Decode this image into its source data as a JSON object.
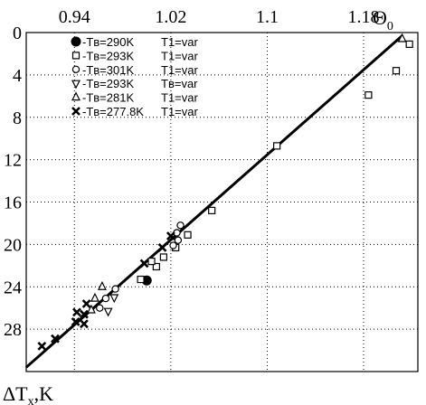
{
  "chart_data": {
    "type": "scatter",
    "title": "",
    "x_axis": {
      "label": "Θ",
      "label_sub": "0",
      "position": "top",
      "ticks": [
        "0.94",
        "1.02",
        "1.1",
        "1.18"
      ],
      "tick_values": [
        0.94,
        1.02,
        1.1,
        1.18
      ],
      "range": [
        0.9,
        1.225
      ]
    },
    "y_axis": {
      "label": "ΔT",
      "label_sub": "x",
      "label_unit": ",K",
      "inverted": true,
      "ticks": [
        "0",
        "4",
        "8",
        "12",
        "16",
        "20",
        "24",
        "28"
      ],
      "tick_values": [
        0,
        4,
        8,
        12,
        16,
        20,
        24,
        28
      ],
      "range": [
        0,
        32
      ]
    },
    "grid": true,
    "legend_position": "top-left",
    "fit_line": {
      "from": [
        0.9,
        31.6
      ],
      "to": [
        1.212,
        0.3
      ]
    },
    "series": [
      {
        "name": "-Tв=290K",
        "suffix": "T1=var",
        "marker": "filled-circle",
        "points": [
          [
            1.0,
            23.4
          ]
        ]
      },
      {
        "name": "-Tв=293K",
        "suffix": "T1=var",
        "marker": "square",
        "points": [
          [
            1.218,
            1.1
          ],
          [
            1.207,
            3.6
          ],
          [
            1.184,
            5.9
          ],
          [
            1.108,
            10.7
          ],
          [
            1.054,
            16.8
          ],
          [
            1.034,
            19.1
          ],
          [
            1.024,
            20.3
          ],
          [
            1.014,
            21.2
          ],
          [
            1.008,
            22.1
          ],
          [
            1.004,
            21.6
          ],
          [
            0.995,
            23.3
          ]
        ]
      },
      {
        "name": "-Tв=301K",
        "suffix": "T1=var",
        "marker": "circle",
        "points": [
          [
            1.028,
            18.2
          ],
          [
            1.026,
            19.6
          ],
          [
            1.022,
            20.1
          ],
          [
            1.025,
            18.9
          ],
          [
            0.974,
            24.2
          ],
          [
            0.966,
            25.1
          ],
          [
            0.961,
            26.0
          ]
        ]
      },
      {
        "name": "-Tв=293K",
        "suffix": "Tв=var",
        "marker": "triangle-down",
        "points": [
          [
            0.973,
            25.0
          ],
          [
            0.968,
            26.3
          ]
        ]
      },
      {
        "name": "-Tв=281K",
        "suffix": "T1=var",
        "marker": "triangle-up",
        "points": [
          [
            1.212,
            0.6
          ],
          [
            0.963,
            24.0
          ],
          [
            0.957,
            25.1
          ],
          [
            0.954,
            26.2
          ]
        ]
      },
      {
        "name": "-Tв=277.8K",
        "suffix": "T1=var",
        "marker": "x",
        "points": [
          [
            1.02,
            19.2
          ],
          [
            1.013,
            20.3
          ],
          [
            0.998,
            21.8
          ],
          [
            0.95,
            25.6
          ],
          [
            0.948,
            26.6
          ],
          [
            0.942,
            26.4
          ],
          [
            0.948,
            27.5
          ],
          [
            0.941,
            27.3
          ],
          [
            0.924,
            28.9
          ],
          [
            0.913,
            29.6
          ]
        ]
      }
    ]
  }
}
